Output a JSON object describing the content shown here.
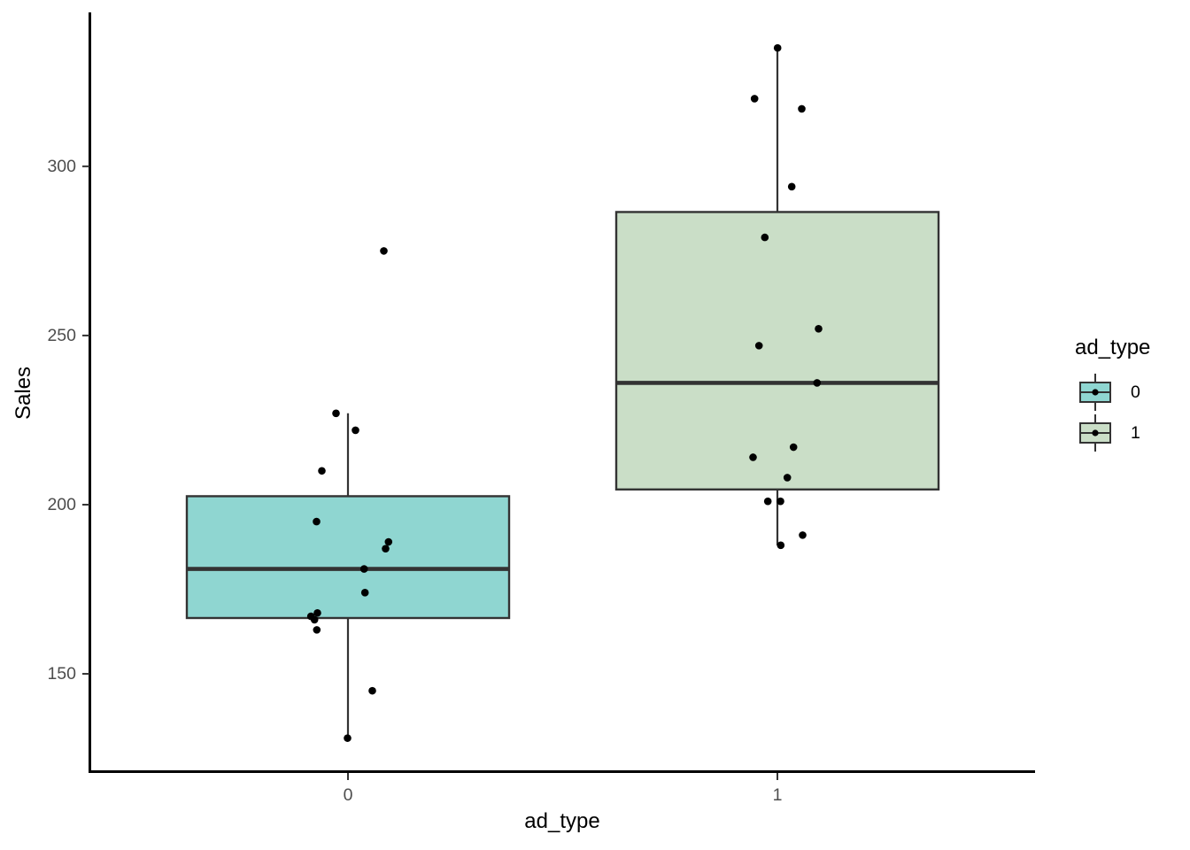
{
  "figure": {
    "background": "#FFFFFF"
  },
  "chart_data": {
    "type": "boxplot",
    "title": "",
    "xlabel": "ad_type",
    "ylabel": "Sales",
    "categories": [
      "0",
      "1"
    ],
    "y_ticks": [
      150,
      200,
      250,
      300
    ],
    "ylim": [
      120.7,
      345.5
    ],
    "grid": false,
    "legend": {
      "title": "ad_type",
      "position": "right",
      "entries": [
        {
          "label": "0",
          "fill": "#8FD6D1"
        },
        {
          "label": "1",
          "fill": "#CADEC7"
        }
      ]
    },
    "series": [
      {
        "name": "0",
        "fill": "#8FD6D1",
        "stats": {
          "whisker_low": 131,
          "q1": 166.5,
          "median": 181,
          "q3": 202.5,
          "whisker_high": 227
        },
        "points": [
          {
            "y": 275,
            "x_offset": 40.5
          },
          {
            "y": 227,
            "x_offset": -13.5
          },
          {
            "y": 222,
            "x_offset": 8.5
          },
          {
            "y": 210,
            "x_offset": -29.5
          },
          {
            "y": 195,
            "x_offset": -35.5
          },
          {
            "y": 189,
            "x_offset": 45.8
          },
          {
            "y": 187,
            "x_offset": 42.5
          },
          {
            "y": 181,
            "x_offset": 18.2
          },
          {
            "y": 174,
            "x_offset": 19.2
          },
          {
            "y": 168,
            "x_offset": -34.5
          },
          {
            "y": 167,
            "x_offset": -41.8
          },
          {
            "y": 166,
            "x_offset": -37.8
          },
          {
            "y": 163,
            "x_offset": -35.2
          },
          {
            "y": 145,
            "x_offset": 27.5
          },
          {
            "y": 131,
            "x_offset": -0.5
          }
        ]
      },
      {
        "name": "1",
        "fill": "#CADEC7",
        "stats": {
          "whisker_low": 188,
          "q1": 204.5,
          "median": 236,
          "q3": 286.5,
          "whisker_high": 335
        },
        "points": [
          {
            "y": 335,
            "x_offset": 0.2
          },
          {
            "y": 320,
            "x_offset": -25.8
          },
          {
            "y": 317,
            "x_offset": 27.5
          },
          {
            "y": 294,
            "x_offset": 16.2
          },
          {
            "y": 279,
            "x_offset": -14.2
          },
          {
            "y": 252,
            "x_offset": 46.5
          },
          {
            "y": 247,
            "x_offset": -20.8
          },
          {
            "y": 236,
            "x_offset": 44.8
          },
          {
            "y": 217,
            "x_offset": 18.2
          },
          {
            "y": 214,
            "x_offset": -27.5
          },
          {
            "y": 208,
            "x_offset": 11.2
          },
          {
            "y": 201,
            "x_offset": -10.8
          },
          {
            "y": 201,
            "x_offset": 3.5
          },
          {
            "y": 191,
            "x_offset": 28.5
          },
          {
            "y": 188,
            "x_offset": 3.8
          }
        ]
      }
    ],
    "style": {
      "box_border": "#333333",
      "median_color": "#333333",
      "whisker_color": "#333333",
      "point_color": "#000000",
      "axis_line_color": "#000000",
      "tick_mark_color": "#333333",
      "tick_label_color": "#4D4D4D",
      "axis_title_color": "#000000"
    }
  }
}
